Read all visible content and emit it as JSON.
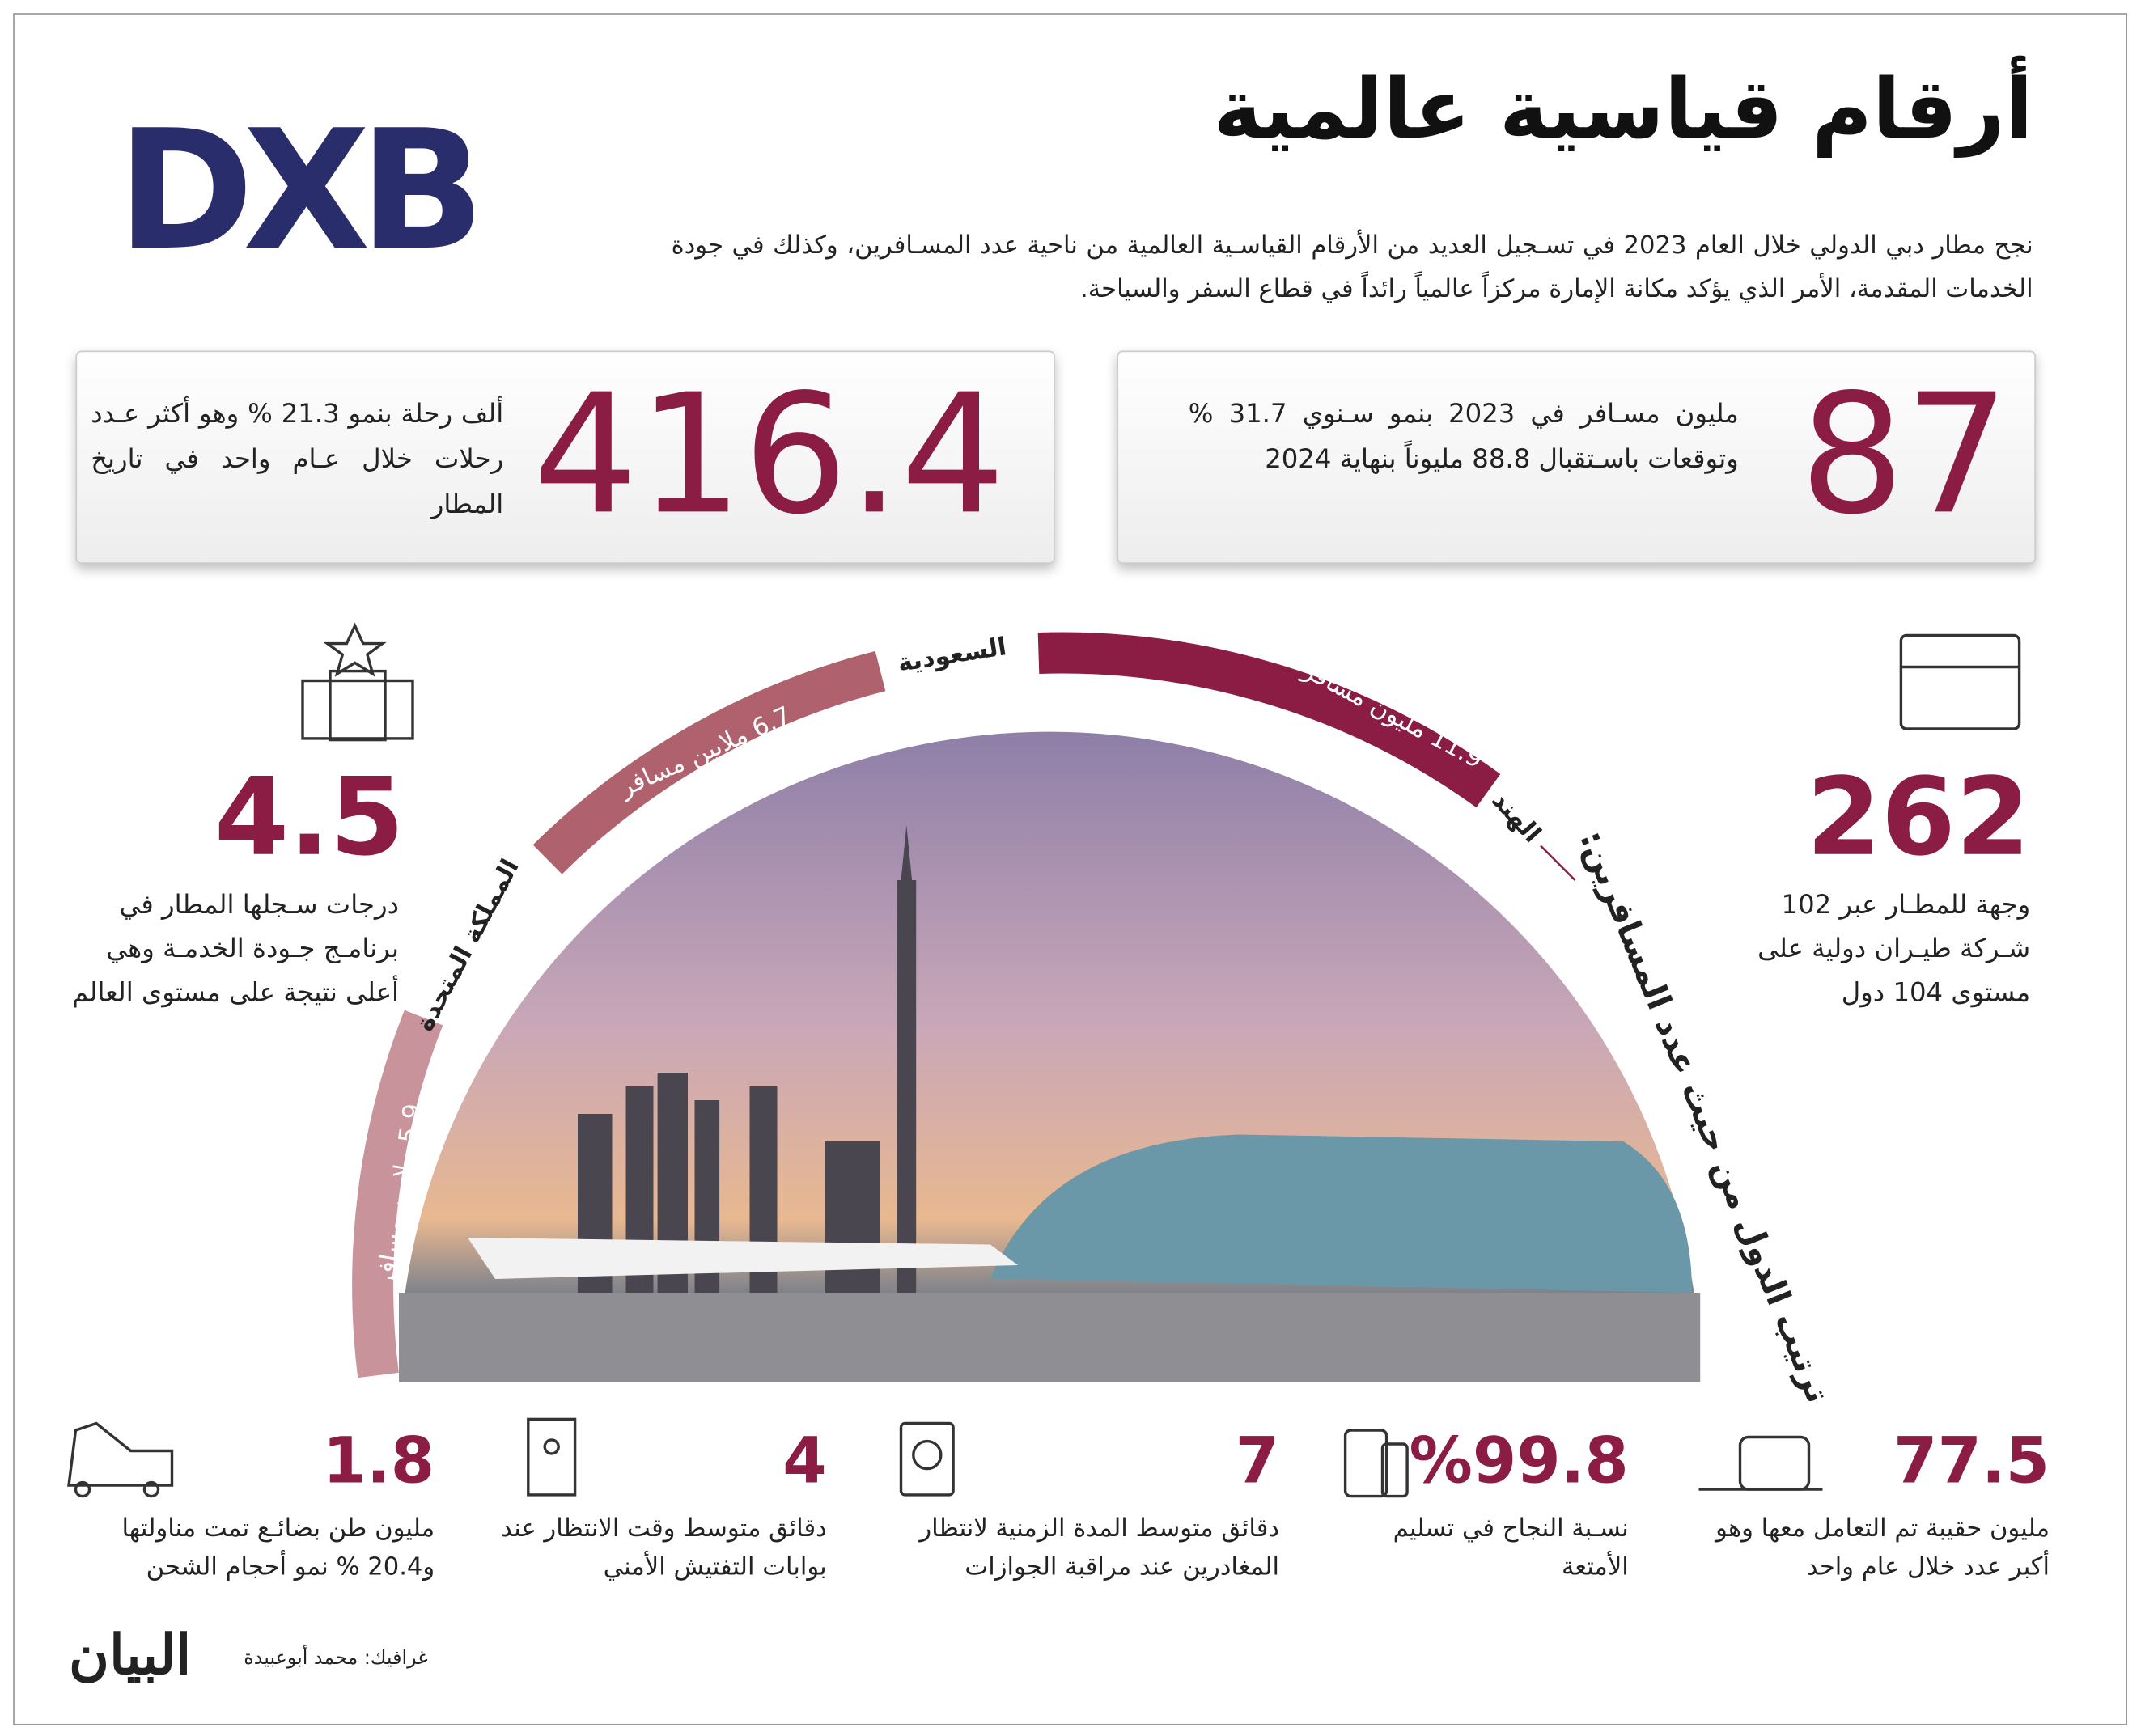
{
  "header": {
    "title": "أرقام قياسية عالمية",
    "logo": "DXB",
    "intro": "نجح مطار دبي الدولي خلال العام 2023 في تسـجيل العديد من الأرقام القياسـية العالمية من ناحية عدد المسـافرين، وكذلك في جودة الخدمات المقدمة، الأمر الذي يؤكد مكانة الإمارة مركزاً عالمياً رائداً في قطاع السفر والسياحة."
  },
  "highlights": [
    {
      "value": "87",
      "text": "مليون مسـافر في 2023 بنمو سـنوي 31.7 % وتوقعات باسـتقبال 88.8 مليوناً بنهاية 2024"
    },
    {
      "value": "416.4",
      "text": "ألف رحلة بنمو 21.3 % وهو أكثر عـدد رحلات خلال عـام واحد في تاريخ المطار"
    }
  ],
  "side_stats": [
    {
      "value": "262",
      "text": "وجهة للمطـار عبر 102 شـركة طيـران دولية على مستوى 104 دول"
    },
    {
      "value": "4.5",
      "text": "درجات سـجلها المطار في برنامـج جـودة الخدمـة وهي أعلى نتيجة على مستوى العالم"
    }
  ],
  "ranking": {
    "title": "ترتيب الدول من حيث عدد المسافرين:",
    "items": [
      {
        "country": "الهند",
        "label": "11.9 مليون مسافر"
      },
      {
        "country": "السعودية",
        "label": "6.7 ملايين مسافر"
      },
      {
        "country": "المملكة المتحدة",
        "label": "5.9 ملايين مسافر"
      }
    ]
  },
  "bottom_stats": [
    {
      "value": "77.5",
      "text": "مليون حقيبة تم التعامل معها وهو أكبر عدد خلال عام واحد"
    },
    {
      "value": "%99.8",
      "text": "نسـبة النجاح في تسليم الأمتعة"
    },
    {
      "value": "7",
      "text": "دقائق متوسط المدة الزمنية لانتظار المغادرين عند مراقبة الجوازات"
    },
    {
      "value": "4",
      "text": "دقائق متوسط وقت الانتظار عند بوابات التفتيش الأمني"
    },
    {
      "value": "1.8",
      "text": "مليون طن بضائـع تمت مناولتها و20.4 % نمو أحجام الشحن"
    }
  ],
  "footer": {
    "credit": "غرافيك: محمد أبوعبيدة",
    "brand": "البيان"
  }
}
